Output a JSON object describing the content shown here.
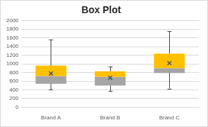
{
  "chart_data": {
    "type": "box",
    "title": "Box Plot",
    "categories": [
      "Brand A",
      "Brand B",
      "Brand C"
    ],
    "min": [
      400,
      370,
      430
    ],
    "q1": [
      540,
      500,
      790
    ],
    "median": [
      720,
      700,
      900
    ],
    "q3": [
      960,
      830,
      1240
    ],
    "max": [
      1560,
      940,
      1760
    ],
    "mean": [
      780,
      680,
      1020
    ],
    "colors": [
      "#a5a5a5",
      "#ffc000"
    ],
    "marker": "x",
    "ylim": [
      0,
      2000
    ],
    "yticks": [
      0,
      200,
      400,
      600,
      800,
      1000,
      1200,
      1400,
      1600,
      1800,
      2000
    ],
    "grid": true
  }
}
